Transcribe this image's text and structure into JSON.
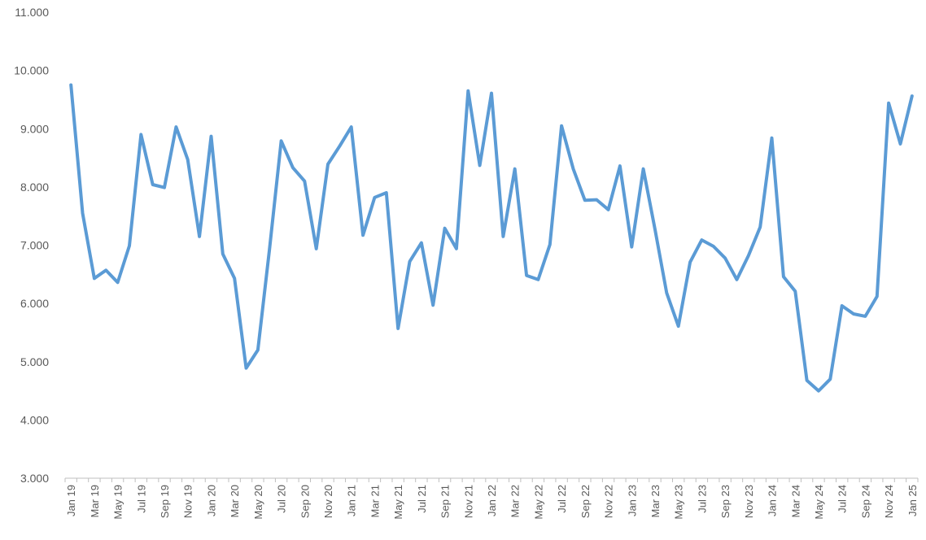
{
  "chart_data": {
    "type": "line",
    "title": "",
    "xlabel": "",
    "ylabel": "",
    "ylim": [
      3000,
      11000
    ],
    "y_ticks": [
      "3.000",
      "4.000",
      "5.000",
      "6.000",
      "7.000",
      "8.000",
      "9.000",
      "10.000",
      "11.000"
    ],
    "grid": false,
    "x_tick_labels": [
      "Jan 19",
      "Mar 19",
      "May 19",
      "Jul 19",
      "Sep 19",
      "Nov 19",
      "Jan 20",
      "Mar 20",
      "May 20",
      "Jul 20",
      "Sep 20",
      "Nov 20",
      "Jan 21",
      "Mar 21",
      "May 21",
      "Jul 21",
      "Sep 21",
      "Nov 21",
      "Jan 22",
      "Mar 22",
      "May 22",
      "Jul 22",
      "Sep 22",
      "Nov 22",
      "Jan 23",
      "Mar 23",
      "May 23",
      "Jul 23",
      "Sep 23",
      "Nov 23",
      "Jan 24",
      "Mar 24",
      "May 24",
      "Jul 24",
      "Sep 24",
      "Nov 24",
      "Jan 25"
    ],
    "x": [
      "Jan 19",
      "Feb 19",
      "Mar 19",
      "Apr 19",
      "May 19",
      "Jun 19",
      "Jul 19",
      "Aug 19",
      "Sep 19",
      "Oct 19",
      "Nov 19",
      "Dec 19",
      "Jan 20",
      "Feb 20",
      "Mar 20",
      "Apr 20",
      "May 20",
      "Jun 20",
      "Jul 20",
      "Aug 20",
      "Sep 20",
      "Oct 20",
      "Nov 20",
      "Dec 20",
      "Jan 21",
      "Feb 21",
      "Mar 21",
      "Apr 21",
      "May 21",
      "Jun 21",
      "Jul 21",
      "Aug 21",
      "Sep 21",
      "Oct 21",
      "Nov 21",
      "Dec 21",
      "Jan 22",
      "Feb 22",
      "Mar 22",
      "Apr 22",
      "May 22",
      "Jun 22",
      "Jul 22",
      "Aug 22",
      "Sep 22",
      "Oct 22",
      "Nov 22",
      "Dec 22",
      "Jan 23",
      "Feb 23",
      "Mar 23",
      "Apr 23",
      "May 23",
      "Jun 23",
      "Jul 23",
      "Aug 23",
      "Sep 23",
      "Oct 23",
      "Nov 23",
      "Dec 23",
      "Jan 24",
      "Feb 24",
      "Mar 24",
      "Apr 24",
      "May 24",
      "Jun 24",
      "Jul 24",
      "Aug 24",
      "Sep 24",
      "Oct 24",
      "Nov 24",
      "Dec 24",
      "Jan 25"
    ],
    "series": [
      {
        "name": "",
        "color": "#5b9bd5",
        "values": [
          9750,
          7550,
          6430,
          6570,
          6360,
          6990,
          8900,
          8040,
          7990,
          9030,
          8470,
          7150,
          8870,
          6850,
          6430,
          4890,
          5200,
          6930,
          8790,
          8330,
          8100,
          6940,
          8390,
          8700,
          9030,
          7170,
          7820,
          7900,
          5570,
          6720,
          7040,
          5970,
          7290,
          6940,
          9650,
          8370,
          9610,
          7150,
          8310,
          6480,
          6410,
          7010,
          9050,
          8310,
          7770,
          7780,
          7610,
          8360,
          6970,
          8310,
          7270,
          6180,
          5610,
          6710,
          7090,
          6980,
          6780,
          6410,
          6820,
          7310,
          8840,
          6460,
          6210,
          4680,
          4500,
          4700,
          5960,
          5820,
          5780,
          6120,
          9440,
          8740,
          9560
        ]
      }
    ]
  }
}
